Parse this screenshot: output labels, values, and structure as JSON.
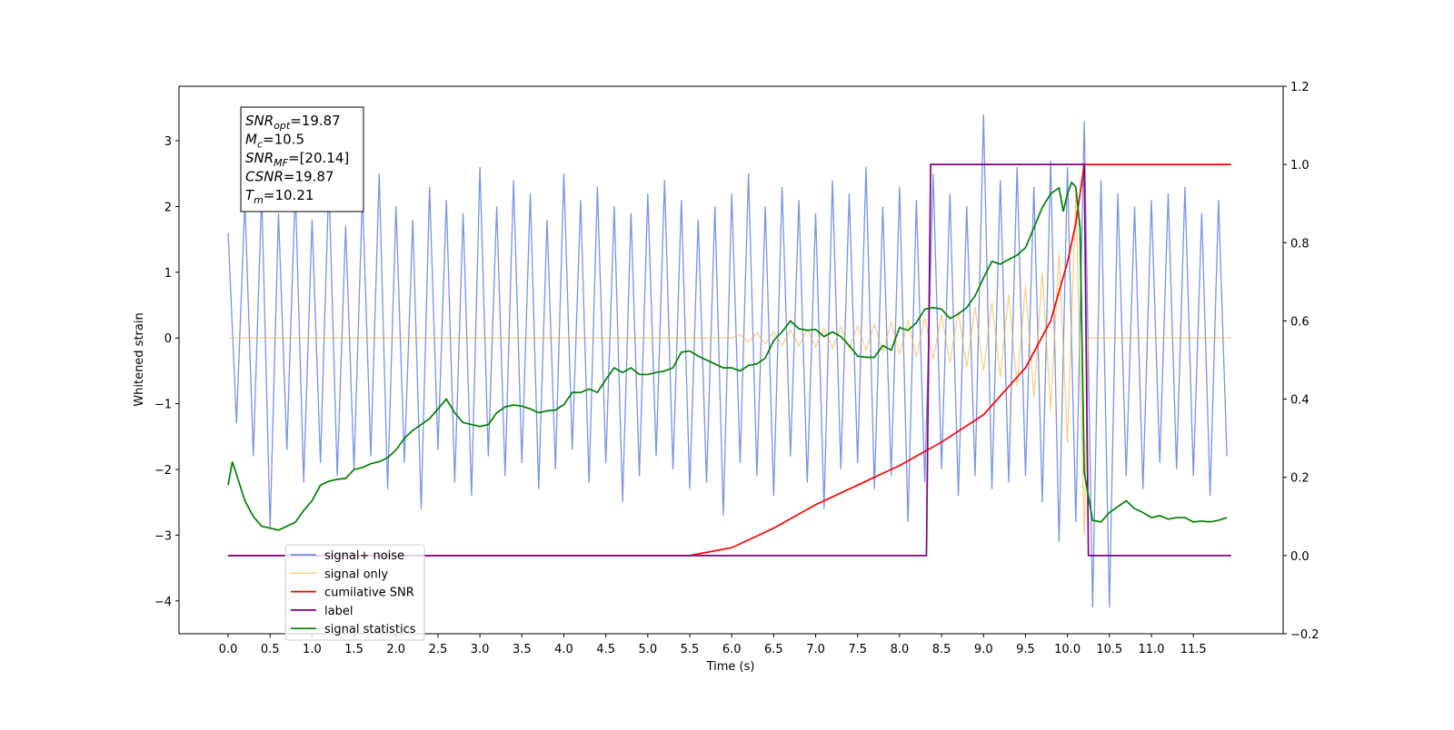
{
  "chart_data": {
    "type": "line",
    "xlabel": "Time (s)",
    "ylabel": "Whitened strain",
    "xlim": [
      -0.585,
      12.57
    ],
    "ylim": [
      -4.5,
      3.83
    ],
    "y2lim": [
      -0.2,
      1.2
    ],
    "xticks": [
      {
        "value": 0,
        "label": "0.0"
      },
      0.5,
      {
        "value": 1,
        "label": "1.0"
      },
      1.5,
      {
        "value": 2,
        "label": "2.0"
      },
      2.5,
      {
        "value": 3,
        "label": "3.0"
      },
      3.5,
      {
        "value": 4,
        "label": "4.0"
      },
      4.5,
      {
        "value": 5,
        "label": "5.0"
      },
      5.5,
      {
        "value": 6,
        "label": "6.0"
      },
      6.5,
      {
        "value": 7,
        "label": "7.0"
      },
      7.5,
      {
        "value": 8,
        "label": "8.0"
      },
      8.5,
      {
        "value": 9,
        "label": "9.0"
      },
      9.5,
      {
        "value": 10,
        "label": "10.0"
      },
      10.5,
      {
        "value": 11,
        "label": "11.0"
      },
      11.5
    ],
    "yticks": [
      {
        "value": -4,
        "label": "−4"
      },
      {
        "value": -3,
        "label": "−3"
      },
      {
        "value": -2,
        "label": "−2"
      },
      {
        "value": -1,
        "label": "−1"
      },
      0,
      1,
      2,
      3
    ],
    "y2ticks": [
      {
        "value": -0.2,
        "label": "−0.2"
      },
      {
        "value": 0,
        "label": "0.0"
      },
      0.2,
      0.4,
      0.6,
      0.8,
      {
        "value": 1,
        "label": "1.0"
      },
      1.2
    ],
    "legend": "lower left",
    "annotation": [
      {
        "main": "SNR",
        "sub": "opt",
        "rest": "=19.87"
      },
      {
        "main": "M",
        "sub": "c",
        "rest": "=10.5"
      },
      {
        "main": "SNR",
        "sub": "MF",
        "rest": "=[20.14]"
      },
      {
        "main": "CSNR",
        "sub": "",
        "rest": "=19.87"
      },
      {
        "main": "T",
        "sub": "m",
        "rest": "=10.21"
      }
    ],
    "series": [
      {
        "name": "signal+ noise",
        "color": "#6a87e6",
        "x": [
          0.0,
          0.1,
          0.2,
          0.3,
          0.4,
          0.5,
          0.6,
          0.7,
          0.8,
          0.9,
          1.0,
          1.1,
          1.2,
          1.3,
          1.4,
          1.5,
          1.6,
          1.7,
          1.8,
          1.9,
          2.0,
          2.1,
          2.2,
          2.3,
          2.4,
          2.5,
          2.6,
          2.7,
          2.8,
          2.9,
          3.0,
          3.1,
          3.2,
          3.3,
          3.4,
          3.5,
          3.6,
          3.7,
          3.8,
          3.9,
          4.0,
          4.1,
          4.2,
          4.3,
          4.4,
          4.5,
          4.6,
          4.7,
          4.8,
          4.9,
          5.0,
          5.1,
          5.2,
          5.3,
          5.4,
          5.5,
          5.6,
          5.7,
          5.8,
          5.9,
          6.0,
          6.1,
          6.2,
          6.3,
          6.4,
          6.5,
          6.6,
          6.7,
          6.8,
          6.9,
          7.0,
          7.1,
          7.2,
          7.3,
          7.4,
          7.5,
          7.6,
          7.7,
          7.8,
          7.9,
          8.0,
          8.1,
          8.2,
          8.3,
          8.4,
          8.5,
          8.6,
          8.7,
          8.8,
          8.9,
          9.0,
          9.1,
          9.2,
          9.3,
          9.4,
          9.5,
          9.6,
          9.7,
          9.8,
          9.9,
          10.0,
          10.1,
          10.2,
          10.3,
          10.4,
          10.5,
          10.6,
          10.7,
          10.8,
          10.9,
          11.0,
          11.1,
          11.2,
          11.3,
          11.4,
          11.5,
          11.6,
          11.7,
          11.8,
          11.9
        ],
        "values": [
          1.6,
          -1.3,
          2.1,
          -1.8,
          2.2,
          -2.9,
          1.9,
          -1.7,
          2.3,
          -2.2,
          1.8,
          -1.9,
          2.4,
          -2.1,
          1.7,
          -2.0,
          2.2,
          -1.8,
          2.5,
          -2.3,
          2.0,
          -1.9,
          1.8,
          -2.6,
          2.3,
          -1.7,
          2.1,
          -2.2,
          1.9,
          -2.4,
          2.6,
          -1.8,
          2.0,
          -2.1,
          2.4,
          -1.9,
          2.2,
          -2.3,
          1.8,
          -2.0,
          2.5,
          -1.7,
          2.1,
          -2.2,
          2.3,
          -1.9,
          2.0,
          -2.5,
          1.9,
          -2.1,
          2.2,
          -1.8,
          2.4,
          -2.0,
          2.1,
          -2.3,
          1.8,
          -2.2,
          2.0,
          -2.7,
          2.2,
          -1.9,
          2.5,
          -2.1,
          2.0,
          -2.4,
          2.3,
          -1.8,
          2.1,
          -2.2,
          1.9,
          -2.6,
          2.4,
          -2.0,
          2.2,
          -1.9,
          2.6,
          -2.3,
          2.0,
          -2.1,
          2.3,
          -2.8,
          2.1,
          -2.2,
          2.5,
          -2.0,
          2.2,
          -2.4,
          2.0,
          -2.1,
          3.4,
          -2.3,
          2.4,
          -2.2,
          2.6,
          -2.1,
          2.3,
          -2.5,
          2.7,
          -3.1,
          2.6,
          -2.8,
          3.3,
          -4.1,
          2.4,
          -4.1,
          2.2,
          -2.1,
          2.0,
          -2.3,
          2.1,
          -1.9,
          2.2,
          -2.0,
          2.3,
          -2.1,
          1.9,
          -2.4,
          2.1,
          -1.8
        ]
      },
      {
        "name": "signal only",
        "color": "#f5b041",
        "x": [
          0,
          6.0,
          6.1,
          6.2,
          6.3,
          6.4,
          6.5,
          6.6,
          6.7,
          6.8,
          6.9,
          7.0,
          7.1,
          7.2,
          7.3,
          7.4,
          7.5,
          7.6,
          7.7,
          7.8,
          7.9,
          8.0,
          8.1,
          8.2,
          8.3,
          8.4,
          8.5,
          8.6,
          8.7,
          8.8,
          8.9,
          9.0,
          9.1,
          9.2,
          9.3,
          9.4,
          9.5,
          9.6,
          9.7,
          9.8,
          9.9,
          10.0,
          10.1,
          10.2,
          10.25,
          11.95
        ],
        "values": [
          0,
          0,
          0.06,
          -0.07,
          0.08,
          -0.09,
          0.1,
          -0.11,
          0.12,
          -0.12,
          0.13,
          -0.14,
          0.15,
          -0.16,
          0.17,
          -0.17,
          0.18,
          -0.19,
          0.21,
          -0.22,
          0.24,
          -0.25,
          0.27,
          -0.29,
          0.31,
          -0.33,
          0.35,
          -0.38,
          0.41,
          -0.44,
          0.47,
          -0.5,
          0.55,
          -0.6,
          0.66,
          -0.73,
          0.8,
          -0.9,
          1.0,
          -1.1,
          1.3,
          -1.6,
          2.2,
          -3.0,
          0,
          0
        ]
      },
      {
        "name": "cumilative SNR",
        "color": "#ff0000",
        "axis": "y2",
        "x": [
          0,
          5.5,
          6.0,
          6.5,
          7.0,
          7.5,
          8.0,
          8.5,
          9.0,
          9.5,
          9.8,
          10.0,
          10.1,
          10.2,
          10.21,
          11.95
        ],
        "values": [
          0,
          0,
          0.02,
          0.07,
          0.13,
          0.18,
          0.23,
          0.29,
          0.36,
          0.48,
          0.6,
          0.75,
          0.85,
          1.0,
          1.0,
          1.0
        ]
      },
      {
        "name": "label",
        "color": "#800080",
        "axis": "y2",
        "x": [
          0,
          8.32,
          8.37,
          10.2,
          10.25,
          11.95
        ],
        "values": [
          0,
          0,
          1,
          1,
          0,
          0
        ]
      },
      {
        "name": "signal statistics",
        "color": "#008000",
        "axis": "y2",
        "x": [
          0.0,
          0.05,
          0.2,
          0.3,
          0.4,
          0.5,
          0.6,
          0.7,
          0.8,
          0.9,
          1.0,
          1.1,
          1.2,
          1.3,
          1.4,
          1.5,
          1.6,
          1.7,
          1.8,
          1.9,
          2.0,
          2.1,
          2.2,
          2.3,
          2.4,
          2.5,
          2.6,
          2.7,
          2.8,
          2.9,
          3.0,
          3.1,
          3.2,
          3.3,
          3.4,
          3.5,
          3.6,
          3.7,
          3.8,
          3.9,
          4.0,
          4.1,
          4.2,
          4.3,
          4.4,
          4.5,
          4.6,
          4.7,
          4.8,
          4.9,
          5.0,
          5.1,
          5.2,
          5.3,
          5.4,
          5.5,
          5.6,
          5.7,
          5.8,
          5.9,
          6.0,
          6.1,
          6.2,
          6.3,
          6.4,
          6.5,
          6.6,
          6.7,
          6.8,
          6.9,
          7.0,
          7.1,
          7.2,
          7.3,
          7.4,
          7.5,
          7.6,
          7.7,
          7.8,
          7.9,
          8.0,
          8.1,
          8.2,
          8.3,
          8.4,
          8.5,
          8.6,
          8.7,
          8.8,
          8.9,
          9.0,
          9.1,
          9.2,
          9.3,
          9.4,
          9.5,
          9.6,
          9.7,
          9.8,
          9.9,
          9.95,
          10.0,
          10.05,
          10.1,
          10.15,
          10.2,
          10.3,
          10.4,
          10.5,
          10.6,
          10.7,
          10.8,
          10.9,
          11.0,
          11.1,
          11.2,
          11.3,
          11.4,
          11.5,
          11.6,
          11.7,
          11.8,
          11.9
        ],
        "values": [
          0.18,
          0.24,
          0.14,
          0.1,
          0.075,
          0.07,
          0.065,
          0.075,
          0.085,
          0.115,
          0.14,
          0.18,
          0.19,
          0.195,
          0.197,
          0.22,
          0.225,
          0.235,
          0.24,
          0.25,
          0.27,
          0.3,
          0.32,
          0.335,
          0.35,
          0.375,
          0.4,
          0.365,
          0.34,
          0.335,
          0.33,
          0.335,
          0.365,
          0.38,
          0.385,
          0.382,
          0.375,
          0.365,
          0.37,
          0.372,
          0.386,
          0.417,
          0.417,
          0.426,
          0.417,
          0.45,
          0.48,
          0.468,
          0.48,
          0.463,
          0.463,
          0.468,
          0.472,
          0.48,
          0.52,
          0.523,
          0.51,
          0.5,
          0.49,
          0.48,
          0.48,
          0.472,
          0.486,
          0.49,
          0.505,
          0.55,
          0.572,
          0.6,
          0.58,
          0.576,
          0.578,
          0.56,
          0.572,
          0.56,
          0.537,
          0.51,
          0.507,
          0.507,
          0.537,
          0.525,
          0.583,
          0.576,
          0.595,
          0.63,
          0.634,
          0.63,
          0.606,
          0.618,
          0.634,
          0.664,
          0.71,
          0.752,
          0.745,
          0.757,
          0.768,
          0.787,
          0.838,
          0.89,
          0.925,
          0.94,
          0.88,
          0.925,
          0.954,
          0.942,
          0.838,
          0.213,
          0.09,
          0.086,
          0.11,
          0.125,
          0.14,
          0.12,
          0.11,
          0.097,
          0.102,
          0.093,
          0.097,
          0.097,
          0.086,
          0.088,
          0.086,
          0.09,
          0.097
        ]
      }
    ]
  }
}
